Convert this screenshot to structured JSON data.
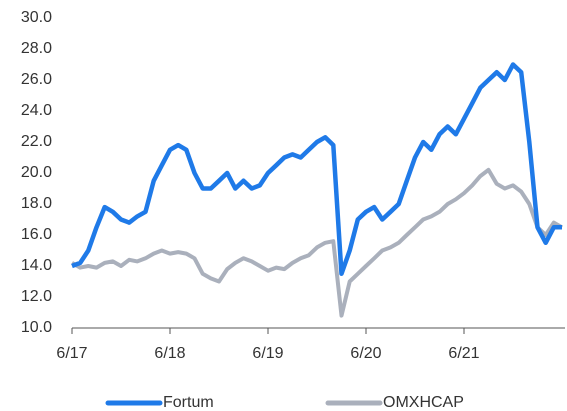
{
  "chart_data": {
    "type": "line",
    "categories": [
      "6/17",
      null,
      null,
      null,
      null,
      null,
      null,
      null,
      null,
      null,
      null,
      null,
      "6/18",
      null,
      null,
      null,
      null,
      null,
      null,
      null,
      null,
      null,
      null,
      null,
      "6/19",
      null,
      null,
      null,
      null,
      null,
      null,
      null,
      null,
      null,
      null,
      null,
      "6/20",
      null,
      null,
      null,
      null,
      null,
      null,
      null,
      null,
      null,
      null,
      null,
      "6/21",
      null,
      null,
      null,
      null,
      null,
      null,
      null,
      null,
      null,
      null,
      null,
      null
    ],
    "series": [
      {
        "name": "Fortum",
        "color": "#1f7ae8",
        "values": [
          14.0,
          14.2,
          15.0,
          16.5,
          17.8,
          17.5,
          17.0,
          16.8,
          17.2,
          17.5,
          19.5,
          20.5,
          21.5,
          21.8,
          21.5,
          20.0,
          19.0,
          19.0,
          19.5,
          20.0,
          19.0,
          19.5,
          19.0,
          19.2,
          20.0,
          20.5,
          21.0,
          21.2,
          21.0,
          21.5,
          22.0,
          22.3,
          21.8,
          13.5,
          15.0,
          17.0,
          17.5,
          17.8,
          17.0,
          17.5,
          18.0,
          19.5,
          21.0,
          22.0,
          21.5,
          22.5,
          23.0,
          22.5,
          23.5,
          24.5,
          25.5,
          26.0,
          26.5,
          26.0,
          27.0,
          26.5,
          22.0,
          16.5,
          15.5,
          16.5,
          16.5
        ]
      },
      {
        "name": "OMXHCAP",
        "color": "#aab0bc",
        "values": [
          14.2,
          13.9,
          14.0,
          13.9,
          14.2,
          14.3,
          14.0,
          14.4,
          14.3,
          14.5,
          14.8,
          15.0,
          14.8,
          14.9,
          14.8,
          14.5,
          13.5,
          13.2,
          13.0,
          13.8,
          14.2,
          14.5,
          14.3,
          14.0,
          13.7,
          13.9,
          13.8,
          14.2,
          14.5,
          14.7,
          15.2,
          15.5,
          15.6,
          10.8,
          13.0,
          13.5,
          14.0,
          14.5,
          15.0,
          15.2,
          15.5,
          16.0,
          16.5,
          17.0,
          17.2,
          17.5,
          18.0,
          18.3,
          18.7,
          19.2,
          19.8,
          20.2,
          19.3,
          19.0,
          19.2,
          18.8,
          18.0,
          16.5,
          16.0,
          16.8,
          16.5
        ]
      }
    ],
    "ylim": [
      10,
      30
    ],
    "yticks": [
      {
        "value": 10,
        "label": "10.0"
      },
      {
        "value": 12,
        "label": "12.0"
      },
      {
        "value": 14,
        "label": "14.0"
      },
      {
        "value": 16,
        "label": "16.0"
      },
      {
        "value": 18,
        "label": "18.0"
      },
      {
        "value": 20,
        "label": "20.0"
      },
      {
        "value": 22,
        "label": "22.0"
      },
      {
        "value": 24,
        "label": "24.0"
      },
      {
        "value": 26,
        "label": "26.0"
      },
      {
        "value": 28,
        "label": "28.0"
      },
      {
        "value": 30,
        "label": "30.0"
      }
    ],
    "legend": "bottom"
  }
}
